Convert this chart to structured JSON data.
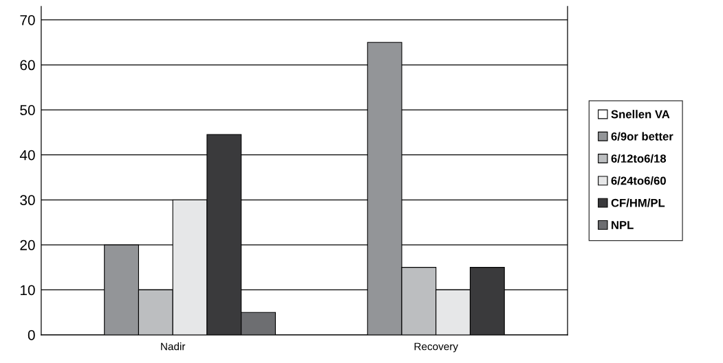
{
  "chart_data": {
    "type": "bar",
    "categories": [
      "Nadir",
      "Recovery"
    ],
    "series": [
      {
        "name": "Snellen VA",
        "color": "#ffffff",
        "values": [
          null,
          null
        ]
      },
      {
        "name": "6/9or better",
        "color": "#939598",
        "values": [
          20,
          65
        ]
      },
      {
        "name": "6/12to6/18",
        "color": "#bcbec0",
        "values": [
          10,
          15
        ]
      },
      {
        "name": "6/24to6/60",
        "color": "#e6e7e8",
        "values": [
          30,
          10
        ]
      },
      {
        "name": "CF/HM/PL",
        "color": "#3a3a3c",
        "values": [
          44.5,
          15
        ]
      },
      {
        "name": "NPL",
        "color": "#6d6e71",
        "values": [
          5,
          null
        ]
      }
    ],
    "ylim": [
      0,
      73
    ],
    "yticks": [
      0,
      10,
      20,
      30,
      40,
      50,
      60,
      70
    ],
    "grid": "y",
    "legend": "right"
  }
}
